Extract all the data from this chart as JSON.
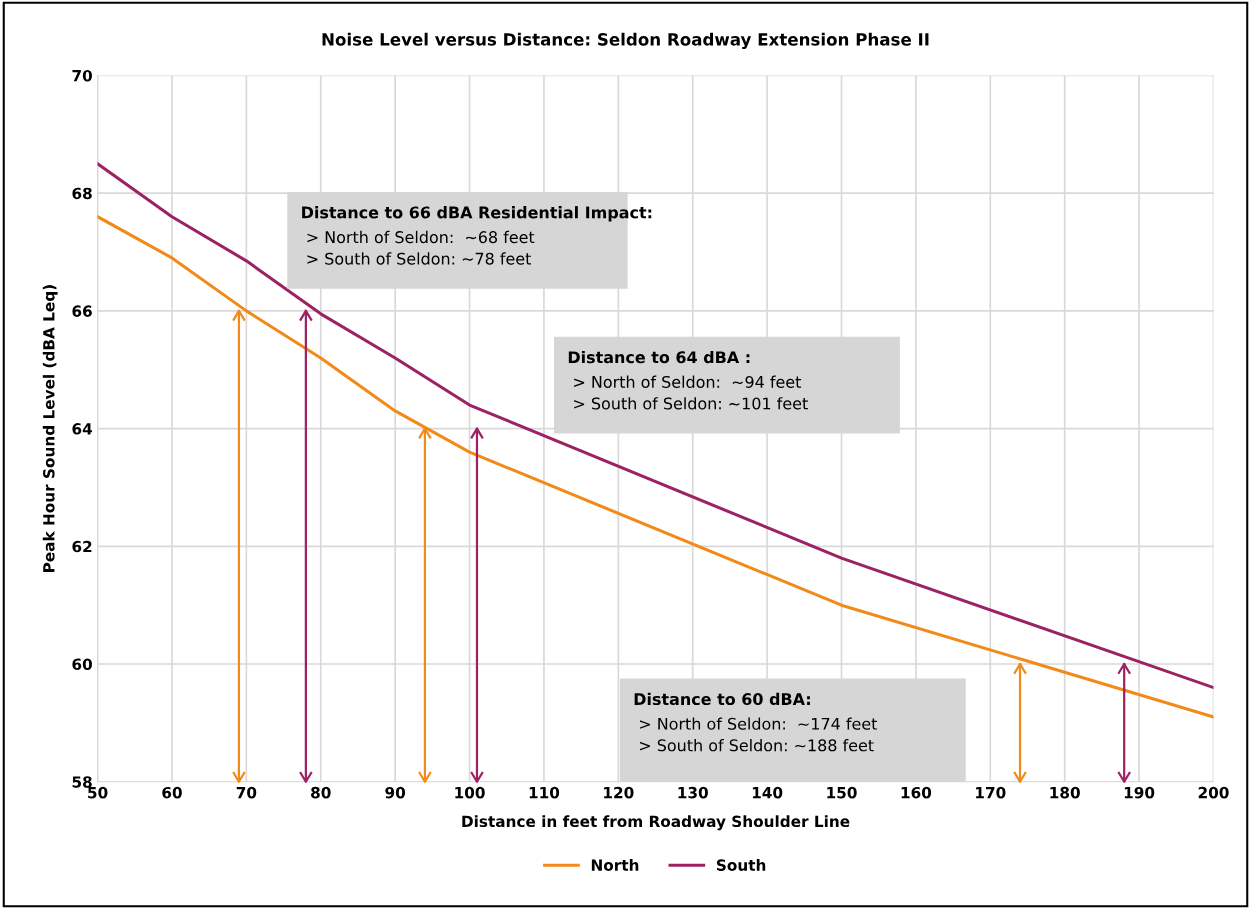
{
  "chart_data": {
    "type": "line",
    "title": "Noise Level versus Distance: Seldon Roadway Extension Phase II",
    "xlabel": "Distance in feet from Roadway Shoulder Line",
    "ylabel": "Peak Hour Sound Level (dBA Leq)",
    "x": [
      50,
      60,
      70,
      80,
      90,
      100,
      150,
      200
    ],
    "series": [
      {
        "name": "North",
        "color": "#f28a1a",
        "values": [
          67.6,
          66.9,
          66.0,
          65.2,
          64.3,
          63.6,
          61.0,
          59.1
        ]
      },
      {
        "name": "South",
        "color": "#9b2263",
        "values": [
          68.5,
          67.6,
          66.85,
          65.95,
          65.2,
          64.4,
          61.8,
          59.6
        ]
      },
      {
        "type": "line",
        "color": "#f28a1a",
        "x": [
          69,
          69
        ],
        "values": [
          58,
          66
        ]
      },
      {
        "type": "line",
        "color": "#9b2263",
        "x": [
          78,
          78
        ],
        "values": [
          58,
          66
        ]
      },
      {
        "type": "line",
        "color": "#f28a1a",
        "x": [
          94,
          94
        ],
        "values": [
          58,
          64
        ]
      },
      {
        "type": "line",
        "color": "#9b2263",
        "x": [
          101,
          101
        ],
        "values": [
          58,
          64
        ]
      },
      {
        "type": "line",
        "color": "#f28a1a",
        "x": [
          174,
          174
        ],
        "values": [
          58,
          60
        ]
      },
      {
        "type": "line",
        "color": "#9b2263",
        "x": [
          188,
          188
        ],
        "values": [
          58,
          60
        ]
      }
    ],
    "annotations": [
      "Distance to 66 dBA Residential Impact:\n > North of Seldon:  ~68 feet\n > South of Seldon: ~78 feet",
      "Distance to 64 dBA :\n > North of Seldon:  ~94 feet\n > South of Seldon: ~101 feet",
      "Distance to 60 dBA:\n > North of Seldon:  ~174 feet\n > South of Seldon: ~188 feet"
    ],
    "xlim": [
      50,
      200
    ],
    "xticks": [
      50,
      60,
      70,
      80,
      90,
      100,
      110,
      120,
      130,
      140,
      150,
      160,
      170,
      180,
      190,
      200
    ],
    "ylim": [
      58,
      70
    ],
    "yticks": [
      58,
      60,
      62,
      64,
      66,
      68,
      70
    ],
    "grid": true,
    "legend": "bottom",
    "marker": "none",
    "line_style": "solid"
  }
}
